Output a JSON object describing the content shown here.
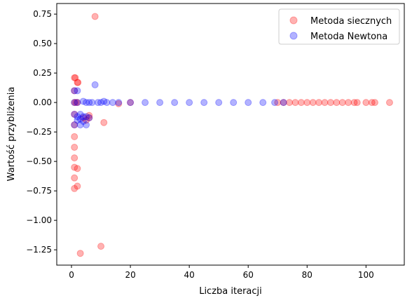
{
  "chart_data": {
    "type": "scatter",
    "xlabel": "Liczba iteracji",
    "ylabel": "Wartość przybliżenia",
    "xlim": [
      -5,
      113
    ],
    "ylim": [
      -1.38,
      0.84
    ],
    "xticks": [
      0,
      20,
      40,
      60,
      80,
      100
    ],
    "yticks": [
      -1.25,
      -1.0,
      -0.75,
      -0.5,
      -0.25,
      0.0,
      0.25,
      0.5,
      0.75
    ],
    "xtick_labels": [
      "0",
      "20",
      "40",
      "60",
      "80",
      "100"
    ],
    "ytick_labels": [
      "−1.25",
      "−1.00",
      "−0.75",
      "−0.50",
      "−0.25",
      "0.00",
      "0.25",
      "0.50",
      "0.75"
    ],
    "grid": false,
    "legend_position": "top-right",
    "series": [
      {
        "name": "Metoda siecznych",
        "color": "#ff0000",
        "alpha": 0.3,
        "points": [
          [
            1,
            0.21
          ],
          [
            1.3,
            0.21
          ],
          [
            2,
            0.17
          ],
          [
            2.2,
            0.17
          ],
          [
            1,
            0.1
          ],
          [
            1,
            0.0
          ],
          [
            1.5,
            0.0
          ],
          [
            2,
            0.0
          ],
          [
            1,
            -0.1
          ],
          [
            1,
            -0.19
          ],
          [
            1,
            -0.29
          ],
          [
            1,
            -0.38
          ],
          [
            1,
            -0.47
          ],
          [
            1,
            -0.55
          ],
          [
            2,
            -0.56
          ],
          [
            1,
            -0.64
          ],
          [
            2,
            -0.71
          ],
          [
            1,
            -0.73
          ],
          [
            8,
            0.73
          ],
          [
            3,
            -1.28
          ],
          [
            10,
            -1.22
          ],
          [
            11,
            -0.17
          ],
          [
            6,
            -0.11
          ],
          [
            4,
            -0.13
          ],
          [
            5,
            -0.15
          ],
          [
            6,
            -0.13
          ],
          [
            16,
            -0.01
          ],
          [
            20,
            0.0
          ],
          [
            70,
            0.0
          ],
          [
            72,
            0.0
          ],
          [
            74,
            0.0
          ],
          [
            76,
            0.0
          ],
          [
            78,
            0.0
          ],
          [
            80,
            0.0
          ],
          [
            82,
            0.0
          ],
          [
            84,
            0.0
          ],
          [
            86,
            0.0
          ],
          [
            88,
            0.0
          ],
          [
            90,
            0.0
          ],
          [
            92,
            0.0
          ],
          [
            94,
            0.0
          ],
          [
            96,
            0.0
          ],
          [
            97,
            0.0
          ],
          [
            100,
            0.0
          ],
          [
            102,
            0.0
          ],
          [
            103,
            0.0
          ],
          [
            108,
            0.0
          ]
        ]
      },
      {
        "name": "Metoda Newtona",
        "color": "#0000ff",
        "alpha": 0.3,
        "points": [
          [
            1,
            0.1
          ],
          [
            2,
            0.1
          ],
          [
            1,
            0.0
          ],
          [
            2,
            0.0
          ],
          [
            1,
            -0.1
          ],
          [
            2,
            -0.12
          ],
          [
            1,
            -0.19
          ],
          [
            2,
            -0.15
          ],
          [
            3,
            -0.1
          ],
          [
            3,
            -0.14
          ],
          [
            3,
            -0.19
          ],
          [
            4,
            -0.12
          ],
          [
            4,
            -0.16
          ],
          [
            5,
            -0.19
          ],
          [
            5,
            -0.12
          ],
          [
            6,
            -0.13
          ],
          [
            4,
            0.01
          ],
          [
            5,
            0.0
          ],
          [
            6,
            0.0
          ],
          [
            7,
            0.0
          ],
          [
            8,
            0.15
          ],
          [
            9,
            0.0
          ],
          [
            10,
            0.0
          ],
          [
            11,
            0.01
          ],
          [
            12,
            0.0
          ],
          [
            14,
            0.0
          ],
          [
            16,
            0.0
          ],
          [
            20,
            0.0
          ],
          [
            25,
            0.0
          ],
          [
            30,
            0.0
          ],
          [
            35,
            0.0
          ],
          [
            40,
            0.0
          ],
          [
            45,
            0.0
          ],
          [
            50,
            0.0
          ],
          [
            55,
            0.0
          ],
          [
            60,
            0.0
          ],
          [
            65,
            0.0
          ],
          [
            69,
            0.0
          ],
          [
            72,
            0.0
          ]
        ]
      }
    ]
  }
}
